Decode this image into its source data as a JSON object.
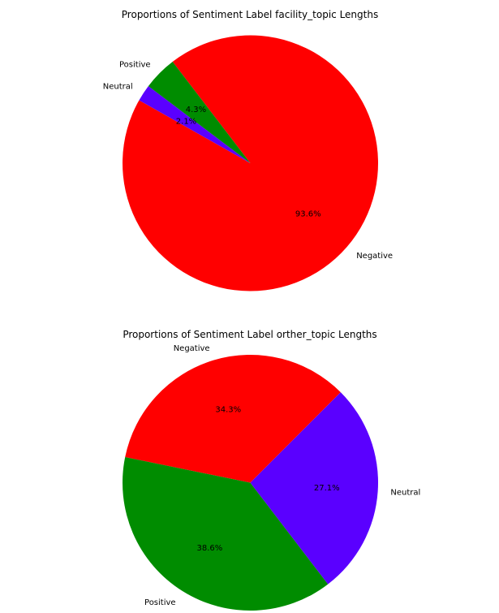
{
  "chart_data": [
    {
      "type": "pie",
      "title": "Proportions of Sentiment Label facility_topic Lengths",
      "slices": [
        {
          "label": "Negative",
          "value": 93.6,
          "pct_label": "93.6%",
          "color": "#ff0000"
        },
        {
          "label": "Positive",
          "value": 4.3,
          "pct_label": "4.3%",
          "color": "#008c00"
        },
        {
          "label": "Neutral",
          "value": 2.1,
          "pct_label": "2.1%",
          "color": "#5a00ff"
        }
      ]
    },
    {
      "type": "pie",
      "title": "Proportions of Sentiment Label orther_topic Lengths",
      "slices": [
        {
          "label": "Negative",
          "value": 34.3,
          "pct_label": "34.3%",
          "color": "#ff0000"
        },
        {
          "label": "Positive",
          "value": 38.6,
          "pct_label": "38.6%",
          "color": "#008c00"
        },
        {
          "label": "Neutral",
          "value": 27.1,
          "pct_label": "27.1%",
          "color": "#5a00ff"
        }
      ]
    }
  ]
}
